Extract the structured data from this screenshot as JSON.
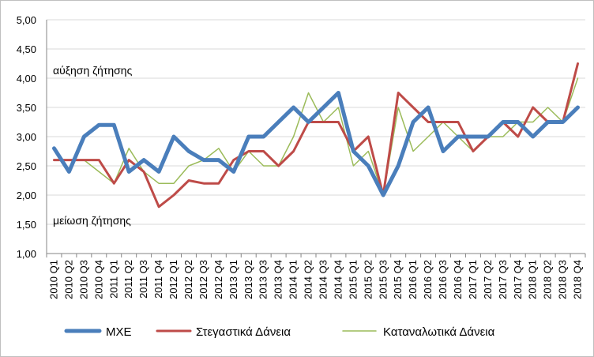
{
  "chart_data": {
    "type": "line",
    "ylim": [
      1.0,
      5.0
    ],
    "ytick_step": 0.5,
    "ytick_labels": [
      "1,00",
      "1,50",
      "2,00",
      "2,50",
      "3,00",
      "3,50",
      "4,00",
      "4,50",
      "5,00"
    ],
    "grid": "horizontal",
    "legend_position": "bottom",
    "categories": [
      "2010 Q1",
      "2010 Q2",
      "2010 Q3",
      "2010 Q4",
      "2011 Q1",
      "2011 Q2",
      "2011 Q3",
      "2011 Q4",
      "2012 Q1",
      "2012 Q2",
      "2012 Q3",
      "2012 Q4",
      "2013 Q1",
      "2013 Q2",
      "2013 Q3",
      "2013 Q4",
      "2014 Q1",
      "2014 Q2",
      "2014 Q3",
      "2014 Q4",
      "2015 Q1",
      "2015 Q2",
      "2015 Q3",
      "2015 Q4",
      "2016 Q1",
      "2016 Q2",
      "2016 Q3",
      "2016 Q4",
      "2017 Q1",
      "2017 Q2",
      "2017 Q3",
      "2017 Q4",
      "2018 Q1",
      "2018 Q2",
      "2018 Q3",
      "2018 Q4"
    ],
    "annotations": {
      "top": "αύξηση ζήτησης",
      "bottom": "μείωση ζήτησης"
    },
    "series": [
      {
        "name": "ΜΧΕ",
        "color": "#4a7ebb",
        "values": [
          2.8,
          2.4,
          3.0,
          3.2,
          3.2,
          2.4,
          2.6,
          2.4,
          3.0,
          2.75,
          2.6,
          2.6,
          2.4,
          3.0,
          3.0,
          3.25,
          3.5,
          3.25,
          3.5,
          3.75,
          2.75,
          2.5,
          2.0,
          2.5,
          3.25,
          3.5,
          2.75,
          3.0,
          3.0,
          3.0,
          3.25,
          3.25,
          3.0,
          3.25,
          3.25,
          3.5
        ]
      },
      {
        "name": "Στεγαστικά Δάνεια",
        "color": "#be4b48",
        "values": [
          2.6,
          2.6,
          2.6,
          2.6,
          2.2,
          2.6,
          2.4,
          1.8,
          2.0,
          2.25,
          2.2,
          2.2,
          2.6,
          2.75,
          2.75,
          2.5,
          2.75,
          3.25,
          3.25,
          3.25,
          2.75,
          3.0,
          2.0,
          3.75,
          3.5,
          3.25,
          3.25,
          3.25,
          2.75,
          3.0,
          3.25,
          3.0,
          3.5,
          3.25,
          3.25,
          4.25
        ]
      },
      {
        "name": "Καταναλωτικά Δάνεια",
        "color": "#9bbb59",
        "values": [
          2.6,
          2.6,
          2.6,
          2.4,
          2.2,
          2.8,
          2.4,
          2.2,
          2.2,
          2.5,
          2.6,
          2.8,
          2.4,
          2.75,
          2.5,
          2.5,
          3.0,
          3.75,
          3.25,
          3.5,
          2.5,
          2.75,
          2.0,
          3.5,
          2.75,
          3.0,
          3.25,
          3.0,
          2.75,
          3.0,
          3.0,
          3.25,
          3.25,
          3.5,
          3.25,
          4.0
        ]
      }
    ]
  }
}
